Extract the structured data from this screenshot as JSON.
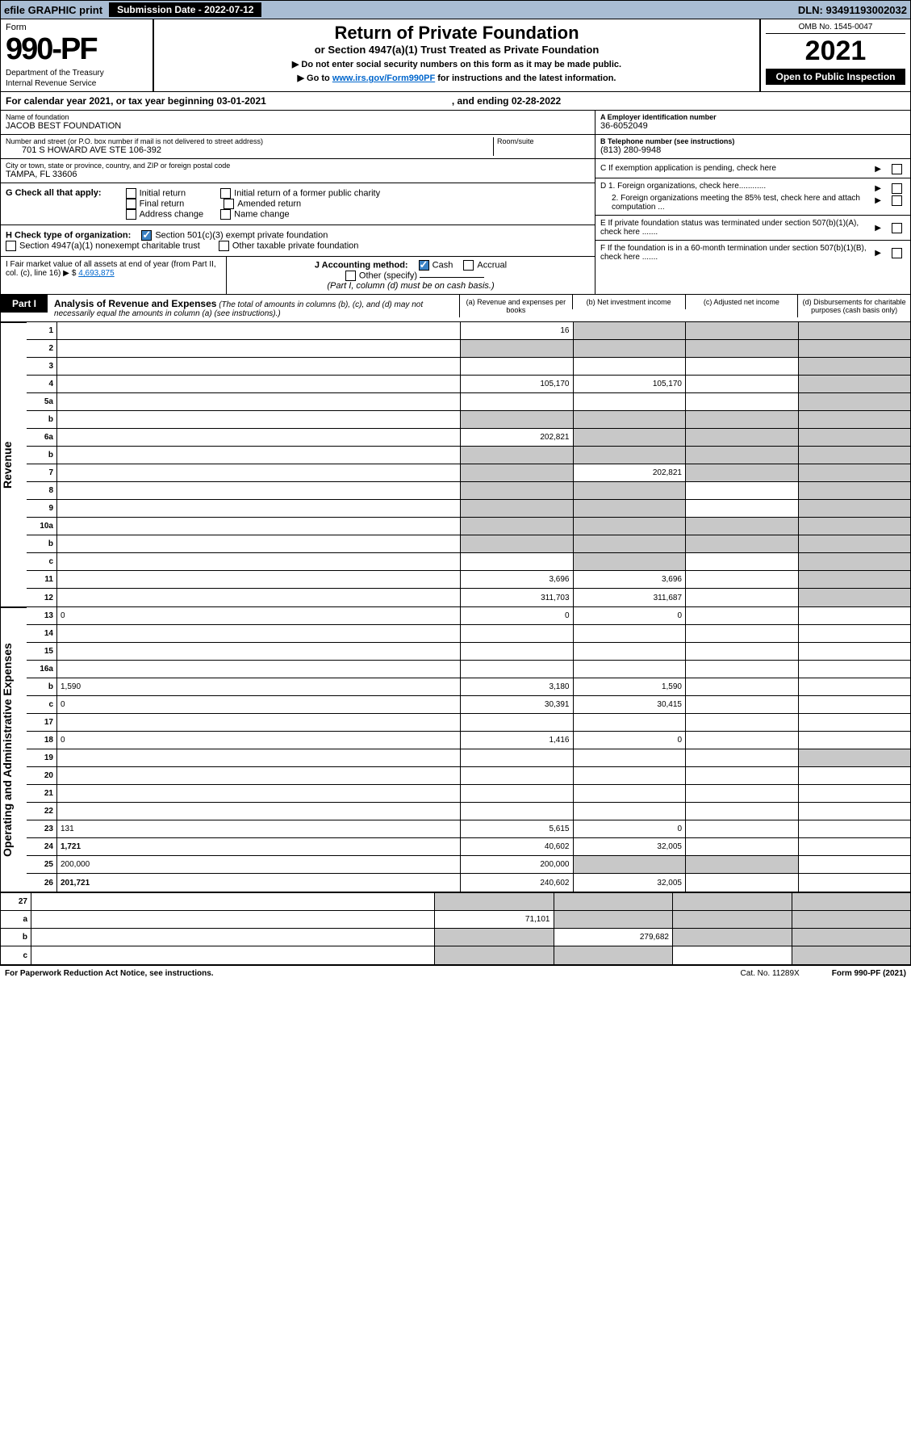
{
  "topbar": {
    "efile": "efile GRAPHIC print",
    "sub_label": "Submission Date - 2022-07-12",
    "dln": "DLN: 93491193002032"
  },
  "header": {
    "form_label": "Form",
    "form_num": "990-PF",
    "dept": "Department of the Treasury",
    "irs": "Internal Revenue Service",
    "title": "Return of Private Foundation",
    "subtitle": "or Section 4947(a)(1) Trust Treated as Private Foundation",
    "note1": "▶ Do not enter social security numbers on this form as it may be made public.",
    "note2_pre": "▶ Go to ",
    "note2_link": "www.irs.gov/Form990PF",
    "note2_post": " for instructions and the latest information.",
    "omb": "OMB No. 1545-0047",
    "year": "2021",
    "open": "Open to Public Inspection"
  },
  "cal": {
    "text": "For calendar year 2021, or tax year beginning 03-01-2021",
    "ending": ", and ending 02-28-2022"
  },
  "foundation": {
    "name_label": "Name of foundation",
    "name": "JACOB BEST FOUNDATION",
    "addr_label": "Number and street (or P.O. box number if mail is not delivered to street address)",
    "addr": "701 S HOWARD AVE STE 106-392",
    "room_label": "Room/suite",
    "city_label": "City or town, state or province, country, and ZIP or foreign postal code",
    "city": "TAMPA, FL  33606"
  },
  "right": {
    "a_label": "A Employer identification number",
    "a_val": "36-6052049",
    "b_label": "B Telephone number (see instructions)",
    "b_val": "(813) 280-9948",
    "c_label": "C If exemption application is pending, check here",
    "d1": "D 1. Foreign organizations, check here............",
    "d2": "2. Foreign organizations meeting the 85% test, check here and attach computation ...",
    "e": "E  If private foundation status was terminated under section 507(b)(1)(A), check here .......",
    "f": "F  If the foundation is in a 60-month termination under section 507(b)(1)(B), check here ......."
  },
  "g": {
    "label": "G Check all that apply:",
    "opts": [
      "Initial return",
      "Final return",
      "Address change",
      "Initial return of a former public charity",
      "Amended return",
      "Name change"
    ]
  },
  "h": {
    "label": "H Check type of organization:",
    "opt1": "Section 501(c)(3) exempt private foundation",
    "opt2": "Section 4947(a)(1) nonexempt charitable trust",
    "opt3": "Other taxable private foundation"
  },
  "i": {
    "label": "I Fair market value of all assets at end of year (from Part II, col. (c), line 16)",
    "val": "4,693,875"
  },
  "j": {
    "label": "J Accounting method:",
    "cash": "Cash",
    "accrual": "Accrual",
    "other": "Other (specify)",
    "note": "(Part I, column (d) must be on cash basis.)"
  },
  "part1": {
    "tag": "Part I",
    "title": "Analysis of Revenue and Expenses",
    "sub": "(The total of amounts in columns (b), (c), and (d) may not necessarily equal the amounts in column (a) (see instructions).)",
    "col_a": "(a) Revenue and expenses per books",
    "col_b": "(b) Net investment income",
    "col_c": "(c) Adjusted net income",
    "col_d": "(d) Disbursements for charitable purposes (cash basis only)"
  },
  "sides": {
    "rev": "Revenue",
    "exp": "Operating and Administrative Expenses"
  },
  "rows": [
    {
      "n": "1",
      "d": "",
      "a": "16",
      "b": "",
      "c": "",
      "sb": true,
      "sc": true,
      "sd": true
    },
    {
      "n": "2",
      "d": "",
      "a": "",
      "b": "",
      "c": "",
      "sa": true,
      "sb": true,
      "sc": true,
      "sd": true,
      "bold": true,
      "noborder_a": false
    },
    {
      "n": "3",
      "d": "",
      "a": "",
      "b": "",
      "c": "",
      "sd": true
    },
    {
      "n": "4",
      "d": "",
      "a": "105,170",
      "b": "105,170",
      "c": "",
      "sd": true
    },
    {
      "n": "5a",
      "d": "",
      "a": "",
      "b": "",
      "c": "",
      "sd": true
    },
    {
      "n": "b",
      "d": "",
      "a": "",
      "b": "",
      "c": "",
      "sa": true,
      "sb": true,
      "sc": true,
      "sd": true
    },
    {
      "n": "6a",
      "d": "",
      "a": "202,821",
      "b": "",
      "c": "",
      "sb": true,
      "sc": true,
      "sd": true
    },
    {
      "n": "b",
      "d": "",
      "a": "",
      "b": "",
      "c": "",
      "sa": true,
      "sb": true,
      "sc": true,
      "sd": true
    },
    {
      "n": "7",
      "d": "",
      "a": "",
      "b": "202,821",
      "c": "",
      "sa": true,
      "sc": true,
      "sd": true
    },
    {
      "n": "8",
      "d": "",
      "a": "",
      "b": "",
      "c": "",
      "sa": true,
      "sb": true,
      "sd": true
    },
    {
      "n": "9",
      "d": "",
      "a": "",
      "b": "",
      "c": "",
      "sa": true,
      "sb": true,
      "sd": true
    },
    {
      "n": "10a",
      "d": "",
      "a": "",
      "b": "",
      "c": "",
      "sa": true,
      "sb": true,
      "sc": true,
      "sd": true
    },
    {
      "n": "b",
      "d": "",
      "a": "",
      "b": "",
      "c": "",
      "sa": true,
      "sb": true,
      "sc": true,
      "sd": true
    },
    {
      "n": "c",
      "d": "",
      "a": "",
      "b": "",
      "c": "",
      "sb": true,
      "sd": true
    },
    {
      "n": "11",
      "d": "",
      "a": "3,696",
      "b": "3,696",
      "c": "",
      "sd": true
    },
    {
      "n": "12",
      "d": "",
      "a": "311,703",
      "b": "311,687",
      "c": "",
      "sd": true,
      "bold": true
    }
  ],
  "exp_rows": [
    {
      "n": "13",
      "d": "0",
      "a": "0",
      "b": "0",
      "c": ""
    },
    {
      "n": "14",
      "d": "",
      "a": "",
      "b": "",
      "c": ""
    },
    {
      "n": "15",
      "d": "",
      "a": "",
      "b": "",
      "c": ""
    },
    {
      "n": "16a",
      "d": "",
      "a": "",
      "b": "",
      "c": ""
    },
    {
      "n": "b",
      "d": "1,590",
      "a": "3,180",
      "b": "1,590",
      "c": ""
    },
    {
      "n": "c",
      "d": "0",
      "a": "30,391",
      "b": "30,415",
      "c": ""
    },
    {
      "n": "17",
      "d": "",
      "a": "",
      "b": "",
      "c": ""
    },
    {
      "n": "18",
      "d": "0",
      "a": "1,416",
      "b": "0",
      "c": ""
    },
    {
      "n": "19",
      "d": "",
      "a": "",
      "b": "",
      "c": "",
      "sd": true
    },
    {
      "n": "20",
      "d": "",
      "a": "",
      "b": "",
      "c": ""
    },
    {
      "n": "21",
      "d": "",
      "a": "",
      "b": "",
      "c": ""
    },
    {
      "n": "22",
      "d": "",
      "a": "",
      "b": "",
      "c": ""
    },
    {
      "n": "23",
      "d": "131",
      "a": "5,615",
      "b": "0",
      "c": ""
    },
    {
      "n": "24",
      "d": "1,721",
      "a": "40,602",
      "b": "32,005",
      "c": "",
      "bold": true
    },
    {
      "n": "25",
      "d": "200,000",
      "a": "200,000",
      "b": "",
      "c": "",
      "sb": true,
      "sc": true
    },
    {
      "n": "26",
      "d": "201,721",
      "a": "240,602",
      "b": "32,005",
      "c": "",
      "bold": true
    }
  ],
  "bottom_rows": [
    {
      "n": "27",
      "d": "",
      "a": "",
      "b": "",
      "c": "",
      "sa": true,
      "sb": true,
      "sc": true,
      "sd": true
    },
    {
      "n": "a",
      "d": "",
      "a": "71,101",
      "b": "",
      "c": "",
      "sb": true,
      "sc": true,
      "sd": true,
      "bold": true
    },
    {
      "n": "b",
      "d": "",
      "a": "",
      "b": "279,682",
      "c": "",
      "sa": true,
      "sc": true,
      "sd": true,
      "bold": true
    },
    {
      "n": "c",
      "d": "",
      "a": "",
      "b": "",
      "c": "",
      "sa": true,
      "sb": true,
      "sd": true,
      "bold": true
    }
  ],
  "footer": {
    "left": "For Paperwork Reduction Act Notice, see instructions.",
    "cat": "Cat. No. 11289X",
    "right": "Form 990-PF (2021)"
  }
}
